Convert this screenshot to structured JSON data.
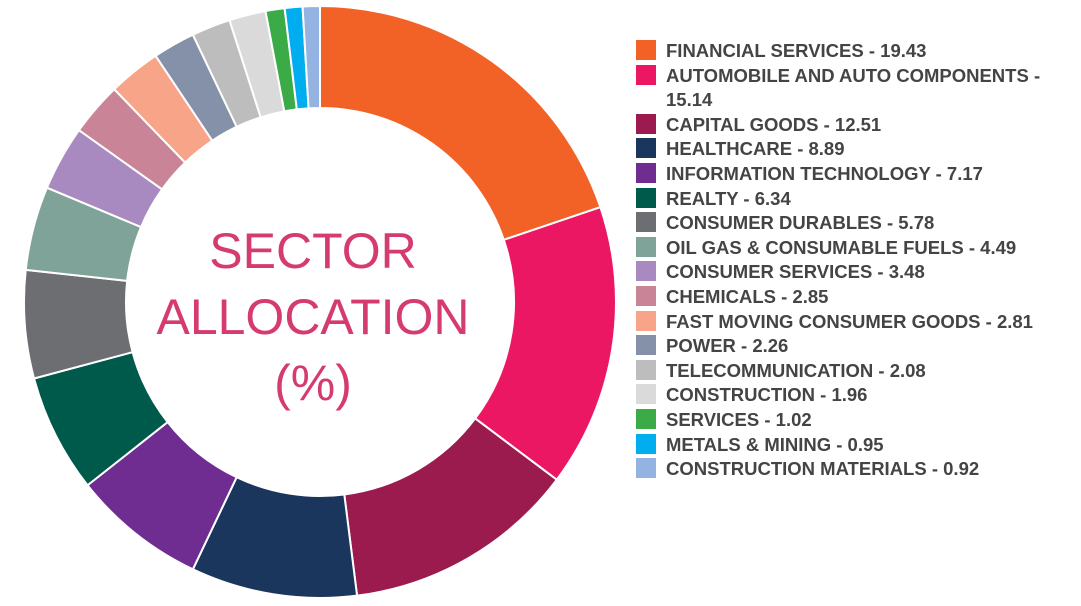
{
  "chart_data": {
    "type": "pie",
    "title": "SECTOR ALLOCATION (%)",
    "title_lines": [
      "SECTOR",
      "ALLOCATION",
      "(%)"
    ],
    "legend_position": "right",
    "slices": [
      {
        "label": "FINANCIAL SERVICES",
        "value": 19.43,
        "color": "#f26227",
        "legend_text": "FINANCIAL SERVICES - 19.43"
      },
      {
        "label": "AUTOMOBILE AND AUTO COMPONENTS",
        "value": 15.14,
        "color": "#ec1763",
        "legend_text": "AUTOMOBILE AND AUTO COMPONENTS - 15.14"
      },
      {
        "label": "CAPITAL GOODS",
        "value": 12.51,
        "color": "#9b1b4e",
        "legend_text": "CAPITAL GOODS - 12.51"
      },
      {
        "label": "HEALTHCARE",
        "value": 8.89,
        "color": "#1b365d",
        "legend_text": "HEALTHCARE - 8.89"
      },
      {
        "label": "INFORMATION TECHNOLOGY",
        "value": 7.17,
        "color": "#6f2c91",
        "legend_text": "INFORMATION TECHNOLOGY - 7.17"
      },
      {
        "label": "REALTY",
        "value": 6.34,
        "color": "#005a4c",
        "legend_text": "REALTY - 6.34"
      },
      {
        "label": "CONSUMER DURABLES",
        "value": 5.78,
        "color": "#6d6e71",
        "legend_text": "CONSUMER DURABLES - 5.78"
      },
      {
        "label": "OIL GAS & CONSUMABLE FUELS",
        "value": 4.49,
        "color": "#7fa398",
        "legend_text": "OIL GAS & CONSUMABLE FUELS - 4.49"
      },
      {
        "label": "CONSUMER SERVICES",
        "value": 3.48,
        "color": "#a98ac0",
        "legend_text": "CONSUMER SERVICES - 3.48"
      },
      {
        "label": "CHEMICALS",
        "value": 2.85,
        "color": "#c98497",
        "legend_text": "CHEMICALS - 2.85"
      },
      {
        "label": "FAST MOVING CONSUMER GOODS",
        "value": 2.81,
        "color": "#f8a488",
        "legend_text": "FAST MOVING CONSUMER GOODS - 2.81"
      },
      {
        "label": "POWER",
        "value": 2.26,
        "color": "#8591a8",
        "legend_text": "POWER - 2.26"
      },
      {
        "label": "TELECOMMUNICATION",
        "value": 2.08,
        "color": "#bdbdbd",
        "legend_text": "TELECOMMUNICATION - 2.08"
      },
      {
        "label": "CONSTRUCTION",
        "value": 1.96,
        "color": "#dadada",
        "legend_text": "CONSTRUCTION - 1.96"
      },
      {
        "label": "SERVICES",
        "value": 1.02,
        "color": "#3bab48",
        "legend_text": "SERVICES - 1.02"
      },
      {
        "label": "METALS & MINING",
        "value": 0.95,
        "color": "#00aeef",
        "legend_text": "METALS & MINING - 0.95"
      },
      {
        "label": "CONSTRUCTION MATERIALS",
        "value": 0.92,
        "color": "#94b3e3",
        "legend_text": "CONSTRUCTION MATERIALS - 0.92"
      }
    ]
  }
}
